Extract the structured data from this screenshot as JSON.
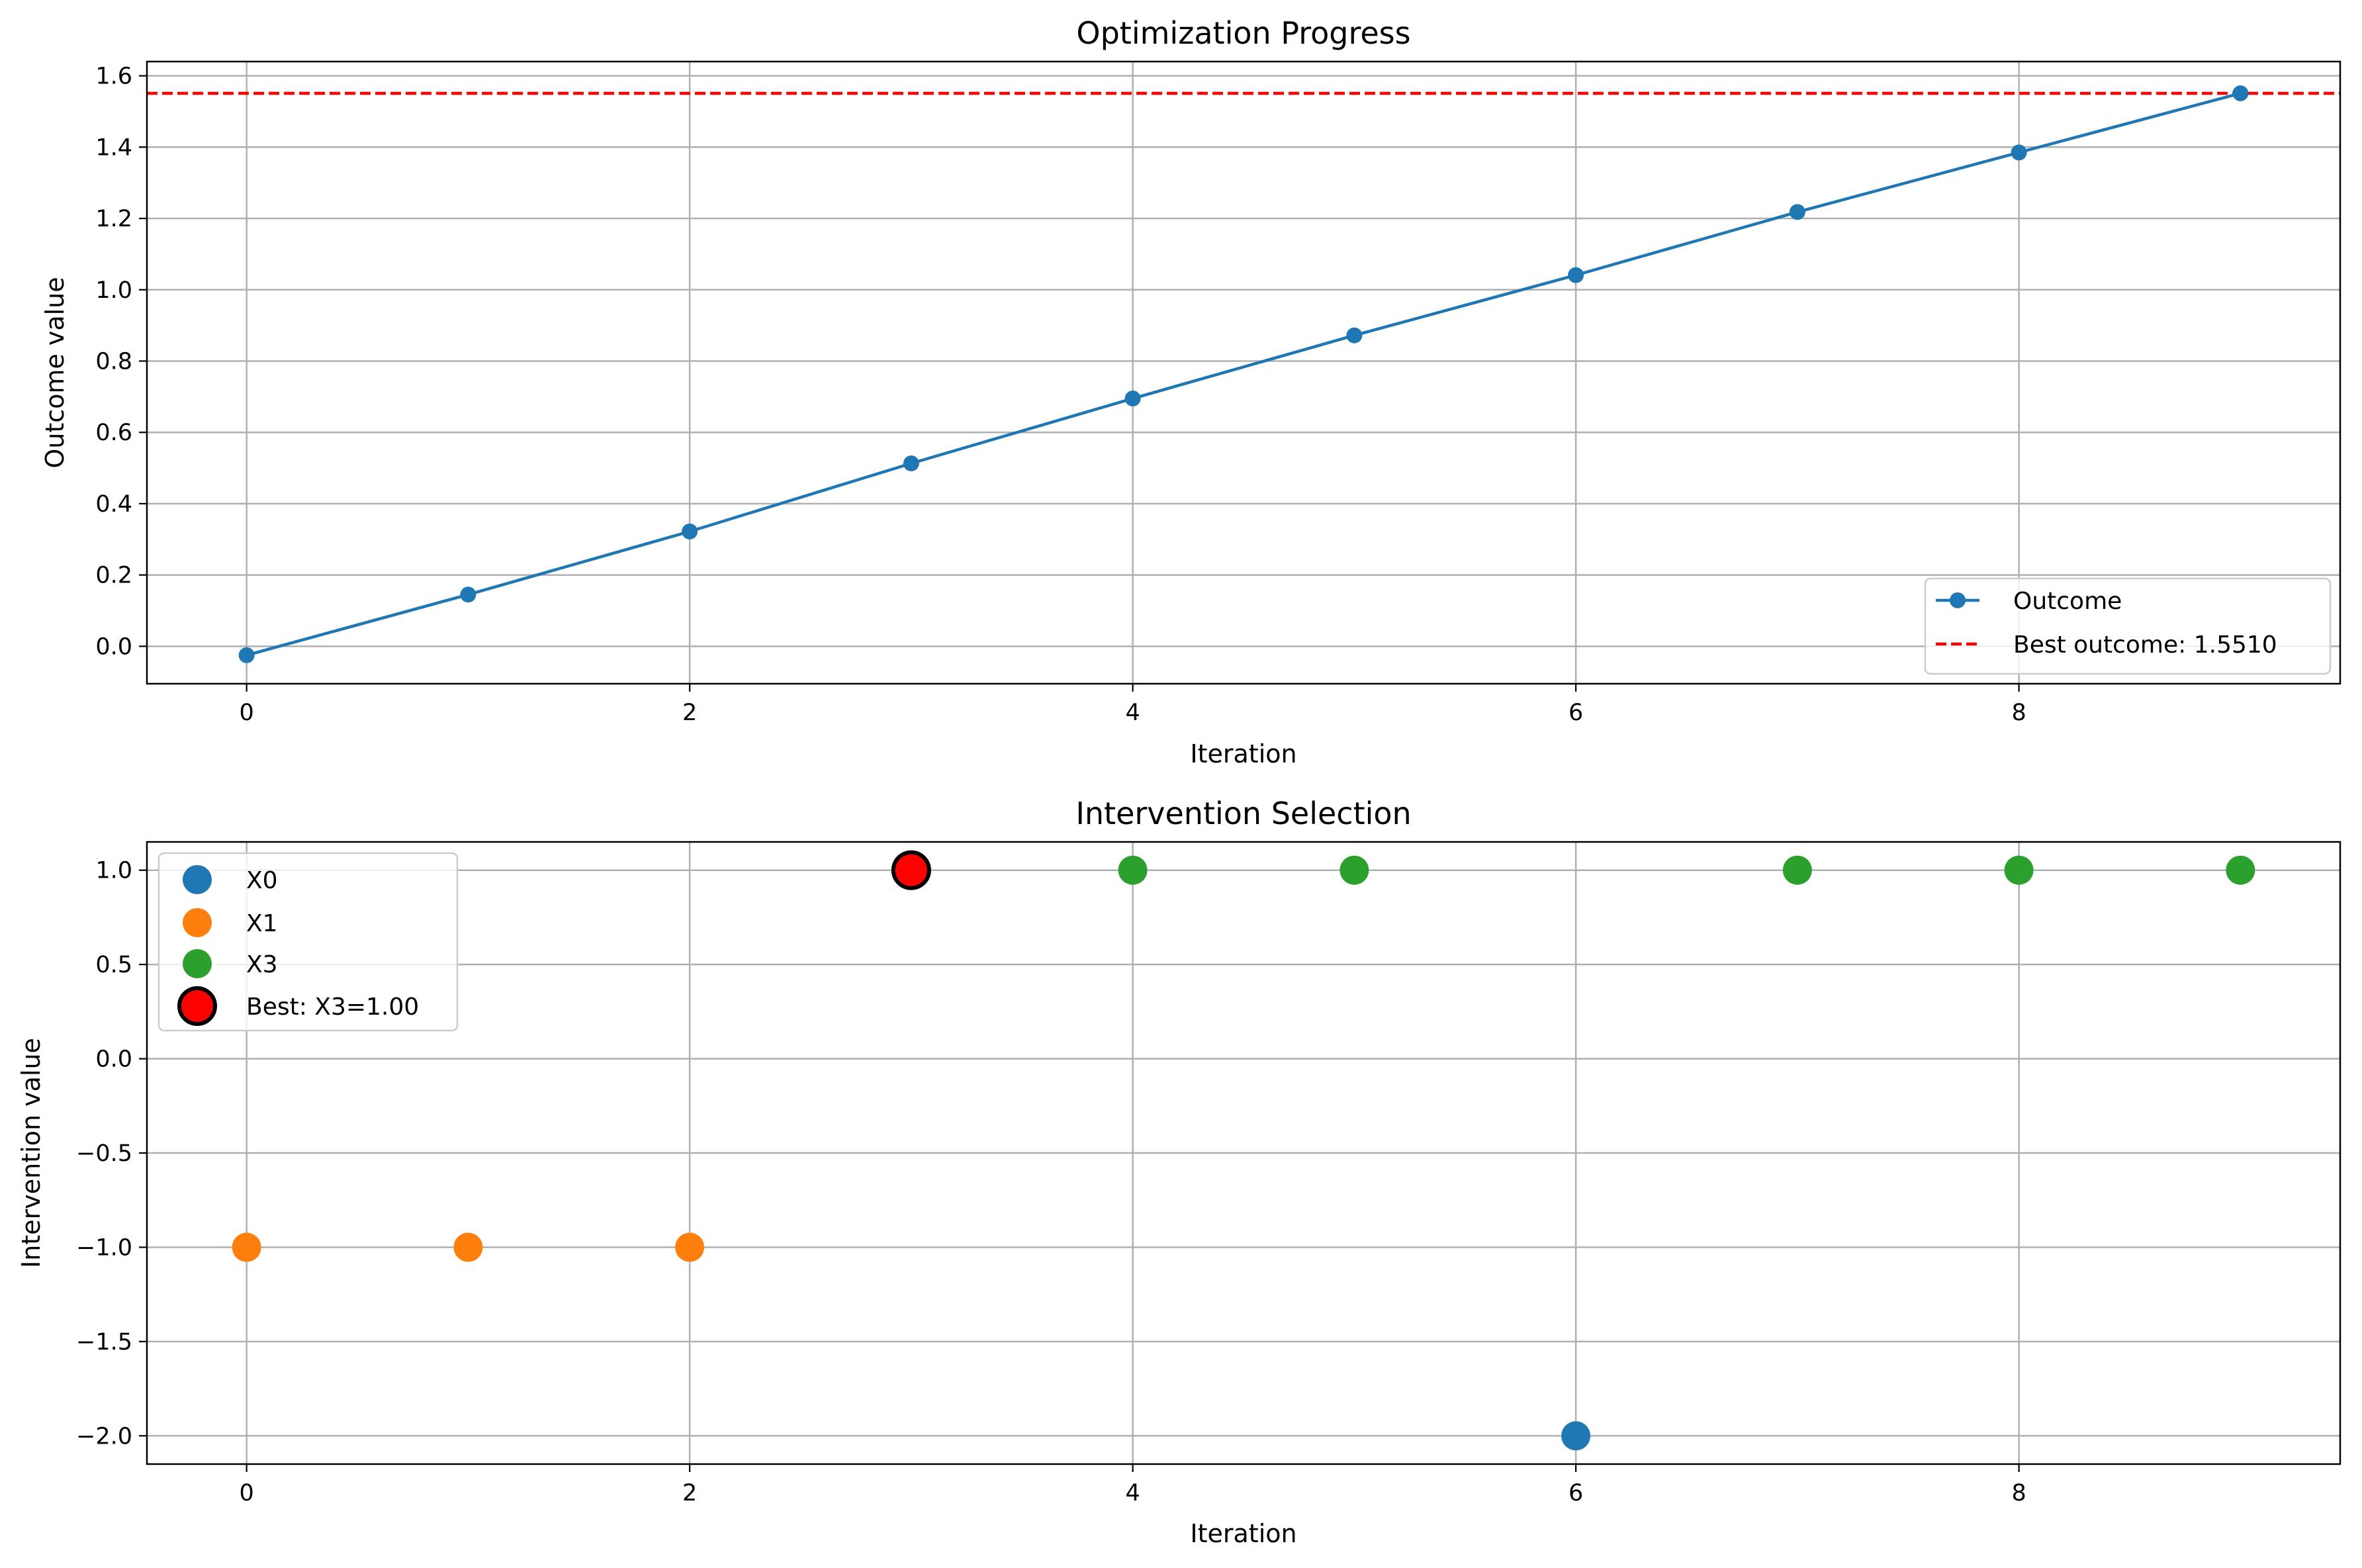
{
  "chart_data": [
    {
      "type": "line",
      "title": "Optimization Progress",
      "xlabel": "Iteration",
      "ylabel": "Outcome value",
      "xlim": [
        -0.45,
        9.45
      ],
      "ylim": [
        -0.105,
        1.64
      ],
      "xticks": [
        0,
        2,
        4,
        6,
        8
      ],
      "yticks": [
        0.0,
        0.2,
        0.4,
        0.6,
        0.8,
        1.0,
        1.2,
        1.4,
        1.6
      ],
      "ytick_format": 1,
      "grid": true,
      "legend_position": "lower-right",
      "series": [
        {
          "name": "Outcome",
          "color": "#1f77b4",
          "x": [
            0,
            1,
            2,
            3,
            4,
            5,
            6,
            7,
            8,
            9
          ],
          "y": [
            -0.025,
            0.145,
            0.322,
            0.513,
            0.695,
            0.872,
            1.041,
            1.218,
            1.385,
            1.551
          ]
        }
      ],
      "reference_lines": [
        {
          "name": "Best outcome: 1.5510",
          "y": 1.551,
          "color": "#ff0000",
          "style": "dashed"
        }
      ]
    },
    {
      "type": "scatter",
      "title": "Intervention Selection",
      "xlabel": "Iteration",
      "ylabel": "Intervention value",
      "xlim": [
        -0.45,
        9.45
      ],
      "ylim": [
        -2.15,
        1.15
      ],
      "xticks": [
        0,
        2,
        4,
        6,
        8
      ],
      "yticks": [
        -2.0,
        -1.5,
        -1.0,
        -0.5,
        0.0,
        0.5,
        1.0
      ],
      "ytick_format": 1,
      "grid": true,
      "legend_position": "upper-left",
      "series": [
        {
          "name": "X0",
          "color": "#1f77b4",
          "points": [
            [
              6,
              -2.0
            ]
          ]
        },
        {
          "name": "X1",
          "color": "#ff7f0e",
          "points": [
            [
              0,
              -1.0
            ],
            [
              1,
              -1.0
            ],
            [
              2,
              -1.0
            ]
          ]
        },
        {
          "name": "X3",
          "color": "#2ca02c",
          "points": [
            [
              3,
              1.0
            ],
            [
              4,
              1.0
            ],
            [
              5,
              1.0
            ],
            [
              7,
              1.0
            ],
            [
              8,
              1.0
            ],
            [
              9,
              1.0
            ]
          ]
        }
      ],
      "highlight": {
        "name": "Best: X3=1.00",
        "x": 3,
        "y": 1.0,
        "color": "#ff0000",
        "edge_color": "#000000"
      }
    }
  ]
}
